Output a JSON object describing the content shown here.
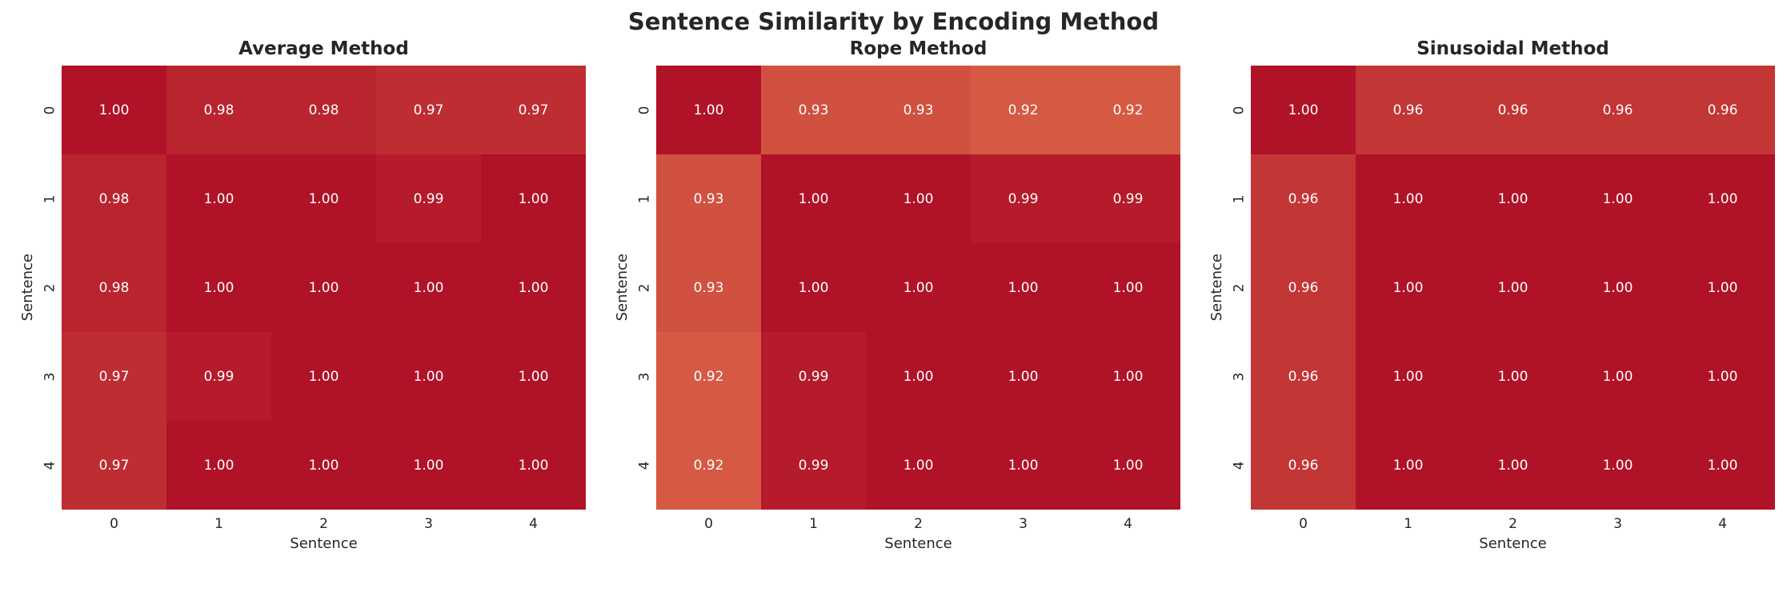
{
  "title": "Sentence Similarity by Encoding Method",
  "colors": {
    "text": "#262626",
    "annotation": "#ffffff",
    "scale_min_color": "#d65a43",
    "scale_max_color": "#b01228",
    "scale_min_value": 0.92,
    "scale_max_value": 1.0
  },
  "chart_data": [
    {
      "type": "heatmap",
      "title": "Average Method",
      "xlabel": "Sentence",
      "ylabel": "Sentence",
      "x_ticks": [
        "0",
        "1",
        "2",
        "3",
        "4"
      ],
      "y_ticks": [
        "0",
        "1",
        "2",
        "3",
        "4"
      ],
      "values": [
        [
          1.0,
          0.98,
          0.98,
          0.97,
          0.97
        ],
        [
          0.98,
          1.0,
          1.0,
          0.99,
          1.0
        ],
        [
          0.98,
          1.0,
          1.0,
          1.0,
          1.0
        ],
        [
          0.97,
          0.99,
          1.0,
          1.0,
          1.0
        ],
        [
          0.97,
          1.0,
          1.0,
          1.0,
          1.0
        ]
      ]
    },
    {
      "type": "heatmap",
      "title": "Rope Method",
      "xlabel": "Sentence",
      "ylabel": "Sentence",
      "x_ticks": [
        "0",
        "1",
        "2",
        "3",
        "4"
      ],
      "y_ticks": [
        "0",
        "1",
        "2",
        "3",
        "4"
      ],
      "values": [
        [
          1.0,
          0.93,
          0.93,
          0.92,
          0.92
        ],
        [
          0.93,
          1.0,
          1.0,
          0.99,
          0.99
        ],
        [
          0.93,
          1.0,
          1.0,
          1.0,
          1.0
        ],
        [
          0.92,
          0.99,
          1.0,
          1.0,
          1.0
        ],
        [
          0.92,
          0.99,
          1.0,
          1.0,
          1.0
        ]
      ]
    },
    {
      "type": "heatmap",
      "title": "Sinusoidal Method",
      "xlabel": "Sentence",
      "ylabel": "Sentence",
      "x_ticks": [
        "0",
        "1",
        "2",
        "3",
        "4"
      ],
      "y_ticks": [
        "0",
        "1",
        "2",
        "3",
        "4"
      ],
      "values": [
        [
          1.0,
          0.96,
          0.96,
          0.96,
          0.96
        ],
        [
          0.96,
          1.0,
          1.0,
          1.0,
          1.0
        ],
        [
          0.96,
          1.0,
          1.0,
          1.0,
          1.0
        ],
        [
          0.96,
          1.0,
          1.0,
          1.0,
          1.0
        ],
        [
          0.96,
          1.0,
          1.0,
          1.0,
          1.0
        ]
      ]
    }
  ]
}
